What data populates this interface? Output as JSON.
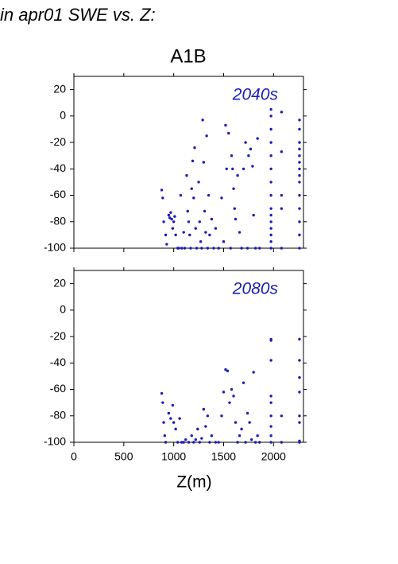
{
  "title": "in apr01 SWE vs. Z:",
  "subtitle": "A1B",
  "chart_data": [
    {
      "type": "scatter",
      "label": "2040s",
      "color": "#1c1cb4",
      "xlim": [
        0,
        2300
      ],
      "ylim": [
        -100,
        30
      ],
      "xticks": [
        0,
        500,
        1000,
        1500,
        2000
      ],
      "yticks": [
        -100,
        -80,
        -60,
        -40,
        -20,
        0,
        20
      ],
      "x": [
        880,
        890,
        900,
        920,
        930,
        950,
        960,
        970,
        980,
        990,
        1000,
        1010,
        1020,
        1040,
        1050,
        1070,
        1080,
        1100,
        1110,
        1130,
        1140,
        1150,
        1160,
        1170,
        1180,
        1190,
        1200,
        1210,
        1220,
        1230,
        1250,
        1260,
        1270,
        1280,
        1290,
        1300,
        1310,
        1320,
        1330,
        1340,
        1350,
        1360,
        1380,
        1400,
        1420,
        1450,
        1480,
        1500,
        1520,
        1530,
        1550,
        1570,
        1580,
        1590,
        1600,
        1610,
        1620,
        1640,
        1660,
        1680,
        1700,
        1720,
        1740,
        1750,
        1770,
        1790,
        1800,
        1820,
        1840,
        1860,
        1975,
        1975,
        1975,
        1975,
        1975,
        1975,
        1975,
        1975,
        1975,
        1975,
        1975,
        1975,
        1975,
        1975,
        1975,
        2080,
        2080,
        2080,
        2080,
        2080,
        2260,
        2260,
        2260,
        2260,
        2260,
        2260,
        2260,
        2260,
        2260,
        2260,
        2260,
        2260,
        2260,
        2260
      ],
      "values": [
        -56,
        -62,
        -80,
        -90,
        -97,
        -75,
        -77,
        -73,
        -78,
        -85,
        -80,
        -76,
        -90,
        -100,
        -100,
        -60,
        -100,
        -88,
        -100,
        -45,
        -72,
        -80,
        -90,
        -100,
        -55,
        -34,
        -62,
        -24,
        -85,
        -100,
        -50,
        -80,
        -95,
        -100,
        -3,
        -35,
        -72,
        -88,
        -15,
        -100,
        -60,
        -90,
        -78,
        -100,
        -85,
        -100,
        -62,
        -95,
        -7,
        -40,
        -13,
        -100,
        -30,
        -40,
        -55,
        -70,
        -78,
        -45,
        -88,
        -100,
        -40,
        -20,
        -100,
        -30,
        -25,
        -38,
        -75,
        -100,
        -17,
        -100,
        -100,
        -95,
        -90,
        -80,
        -70,
        -60,
        -50,
        -40,
        -30,
        -20,
        -10,
        0,
        5,
        -85,
        -75,
        3,
        -27,
        -60,
        -70,
        -100,
        -3,
        -10,
        -20,
        -30,
        -40,
        -50,
        -60,
        -70,
        -80,
        -90,
        -100,
        -25,
        -35,
        -45
      ]
    },
    {
      "type": "scatter",
      "label": "2080s",
      "color": "#1c1cb4",
      "xlabel": "Z(m)",
      "xlim": [
        0,
        2300
      ],
      "ylim": [
        -100,
        30
      ],
      "xticks": [
        0,
        500,
        1000,
        1500,
        2000
      ],
      "yticks": [
        -100,
        -80,
        -60,
        -40,
        -20,
        0,
        20
      ],
      "x": [
        880,
        890,
        900,
        910,
        920,
        950,
        970,
        990,
        1000,
        1020,
        1040,
        1060,
        1080,
        1100,
        1120,
        1150,
        1180,
        1200,
        1220,
        1240,
        1260,
        1280,
        1300,
        1320,
        1340,
        1360,
        1380,
        1420,
        1450,
        1480,
        1500,
        1520,
        1540,
        1560,
        1580,
        1600,
        1620,
        1640,
        1660,
        1680,
        1700,
        1720,
        1740,
        1760,
        1780,
        1800,
        1820,
        1840,
        1860,
        1975,
        1975,
        1975,
        1975,
        1975,
        1975,
        1975,
        1975,
        1975,
        2080,
        2080,
        2260,
        2260,
        2260,
        2260,
        2260,
        2260,
        2260,
        2260
      ],
      "values": [
        -63,
        -70,
        -85,
        -95,
        -100,
        -78,
        -82,
        -72,
        -85,
        -90,
        -100,
        -82,
        -100,
        -100,
        -98,
        -100,
        -95,
        -100,
        -98,
        -90,
        -100,
        -97,
        -75,
        -88,
        -80,
        -100,
        -95,
        -100,
        -100,
        -80,
        -62,
        -45,
        -46,
        -70,
        -60,
        -65,
        -85,
        -100,
        -95,
        -90,
        -55,
        -100,
        -78,
        -85,
        -98,
        -47,
        -100,
        -95,
        -100,
        -22,
        -23,
        -38,
        -65,
        -70,
        -80,
        -88,
        -95,
        -100,
        -80,
        -100,
        -22,
        -38,
        -51,
        -62,
        -80,
        -85,
        -99,
        -100
      ]
    }
  ]
}
